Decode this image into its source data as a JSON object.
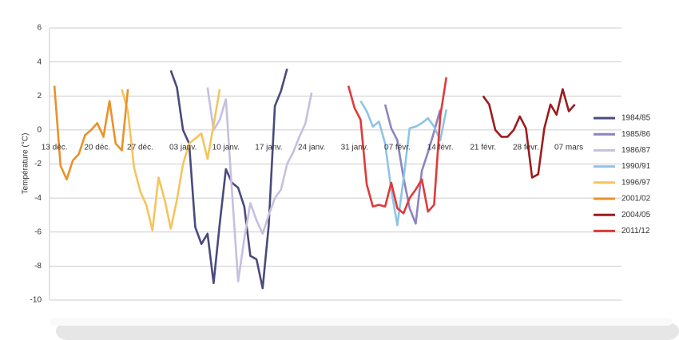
{
  "chart_data": {
    "type": "line",
    "ylabel": "Température (°C)",
    "xlim": [
      -0.8,
      92.6
    ],
    "ylim": [
      -10,
      6
    ],
    "yticks": [
      6,
      4,
      2,
      0,
      -2,
      -4,
      -6,
      -8,
      -10
    ],
    "xticks": [
      {
        "value": 0,
        "label": "13 déc."
      },
      {
        "value": 7,
        "label": "20 déc."
      },
      {
        "value": 14,
        "label": "27 déc."
      },
      {
        "value": 21,
        "label": "03 janv."
      },
      {
        "value": 28,
        "label": "10 janv."
      },
      {
        "value": 35,
        "label": "17 janv."
      },
      {
        "value": 42,
        "label": "24 janv."
      },
      {
        "value": 49,
        "label": "31 janv."
      },
      {
        "value": 56,
        "label": "07 févr."
      },
      {
        "value": 63,
        "label": "14 févr."
      },
      {
        "value": 70,
        "label": "21 févr."
      },
      {
        "value": 77,
        "label": "28 févr."
      },
      {
        "value": 84,
        "label": "07 mars"
      }
    ],
    "grid": true,
    "legend": "right",
    "series": [
      {
        "name": "1984/85",
        "color": "#4b4a7c",
        "x": [
          19,
          20,
          21,
          22,
          23,
          24,
          25,
          26,
          27,
          28,
          29,
          30,
          31,
          32,
          33,
          34,
          35,
          36,
          37,
          38
        ],
        "values": [
          3.5,
          2.5,
          0,
          -0.8,
          -5.7,
          -6.7,
          -6.1,
          -9.0,
          -5.5,
          -2.3,
          -3.1,
          -3.4,
          -4.5,
          -7.4,
          -7.6,
          -9.3,
          -5.6,
          1.4,
          2.3,
          3.6
        ]
      },
      {
        "name": "1985/86",
        "color": "#8c84c0",
        "x": [
          54,
          55,
          56,
          57,
          58,
          59,
          60,
          61,
          62,
          63
        ],
        "values": [
          1.5,
          0.1,
          -0.6,
          -2.8,
          -4.6,
          -5.5,
          -2.4,
          -1.3,
          -0.1,
          1.2
        ]
      },
      {
        "name": "1986/87",
        "color": "#c6bfe0",
        "x": [
          25,
          26,
          27,
          28,
          29,
          30,
          31,
          32,
          33,
          34,
          35,
          36,
          37,
          38,
          39,
          40,
          41,
          42
        ],
        "values": [
          2.5,
          0,
          0.6,
          1.8,
          -3.6,
          -8.9,
          -6.4,
          -4.3,
          -5.3,
          -6.1,
          -5.0,
          -4.0,
          -3.5,
          -2.0,
          -1.3,
          -0.4,
          0.4,
          2.2
        ]
      },
      {
        "name": "1990/91",
        "color": "#8ec4e6",
        "x": [
          50,
          51,
          52,
          53,
          54,
          55,
          56,
          57,
          58,
          59,
          60,
          61,
          62,
          63,
          64
        ],
        "values": [
          1.7,
          1.1,
          0.2,
          0.5,
          -0.8,
          -3.5,
          -5.6,
          -2.9,
          0.1,
          0.2,
          0.4,
          0.7,
          0.2,
          -0.6,
          1.2
        ]
      },
      {
        "name": "1996/97",
        "color": "#f6c45c",
        "x": [
          11,
          12,
          13,
          14,
          15,
          16,
          17,
          18,
          19,
          20,
          21,
          22,
          23,
          24,
          25,
          26,
          27
        ],
        "values": [
          2.4,
          1.1,
          -2.2,
          -3.6,
          -4.4,
          -5.9,
          -2.8,
          -4.1,
          -5.8,
          -4.1,
          -2.0,
          -0.8,
          -0.5,
          -0.2,
          -1.7,
          0.3,
          2.4
        ]
      },
      {
        "name": "2001/02",
        "color": "#e8922a",
        "x": [
          0,
          1,
          2,
          3,
          4,
          5,
          6,
          7,
          8,
          9,
          10,
          11,
          12
        ],
        "values": [
          2.6,
          -2.1,
          -2.9,
          -1.8,
          -1.4,
          -0.3,
          0.0,
          0.4,
          -0.4,
          1.7,
          -0.8,
          -1.2,
          2.4
        ]
      },
      {
        "name": "2004/05",
        "color": "#9b1c1f",
        "x": [
          70,
          71,
          72,
          73,
          74,
          75,
          76,
          77,
          78,
          79,
          80,
          81,
          82,
          83,
          84,
          85
        ],
        "values": [
          2.0,
          1.5,
          0,
          -0.4,
          -0.4,
          0,
          0.8,
          0.1,
          -2.8,
          -2.6,
          0.1,
          1.5,
          0.9,
          2.4,
          1.1,
          1.5
        ]
      },
      {
        "name": "2011/12",
        "color": "#e03a3a",
        "x": [
          48,
          49,
          50,
          51,
          52,
          53,
          54,
          55,
          56,
          57,
          58,
          59,
          60,
          61,
          62,
          63,
          64
        ],
        "values": [
          2.6,
          1.3,
          0.6,
          -3.2,
          -4.5,
          -4.4,
          -4.5,
          -3.1,
          -4.6,
          -4.9,
          -4.0,
          -3.5,
          -2.9,
          -4.8,
          -4.4,
          0.8,
          3.1
        ]
      }
    ]
  }
}
